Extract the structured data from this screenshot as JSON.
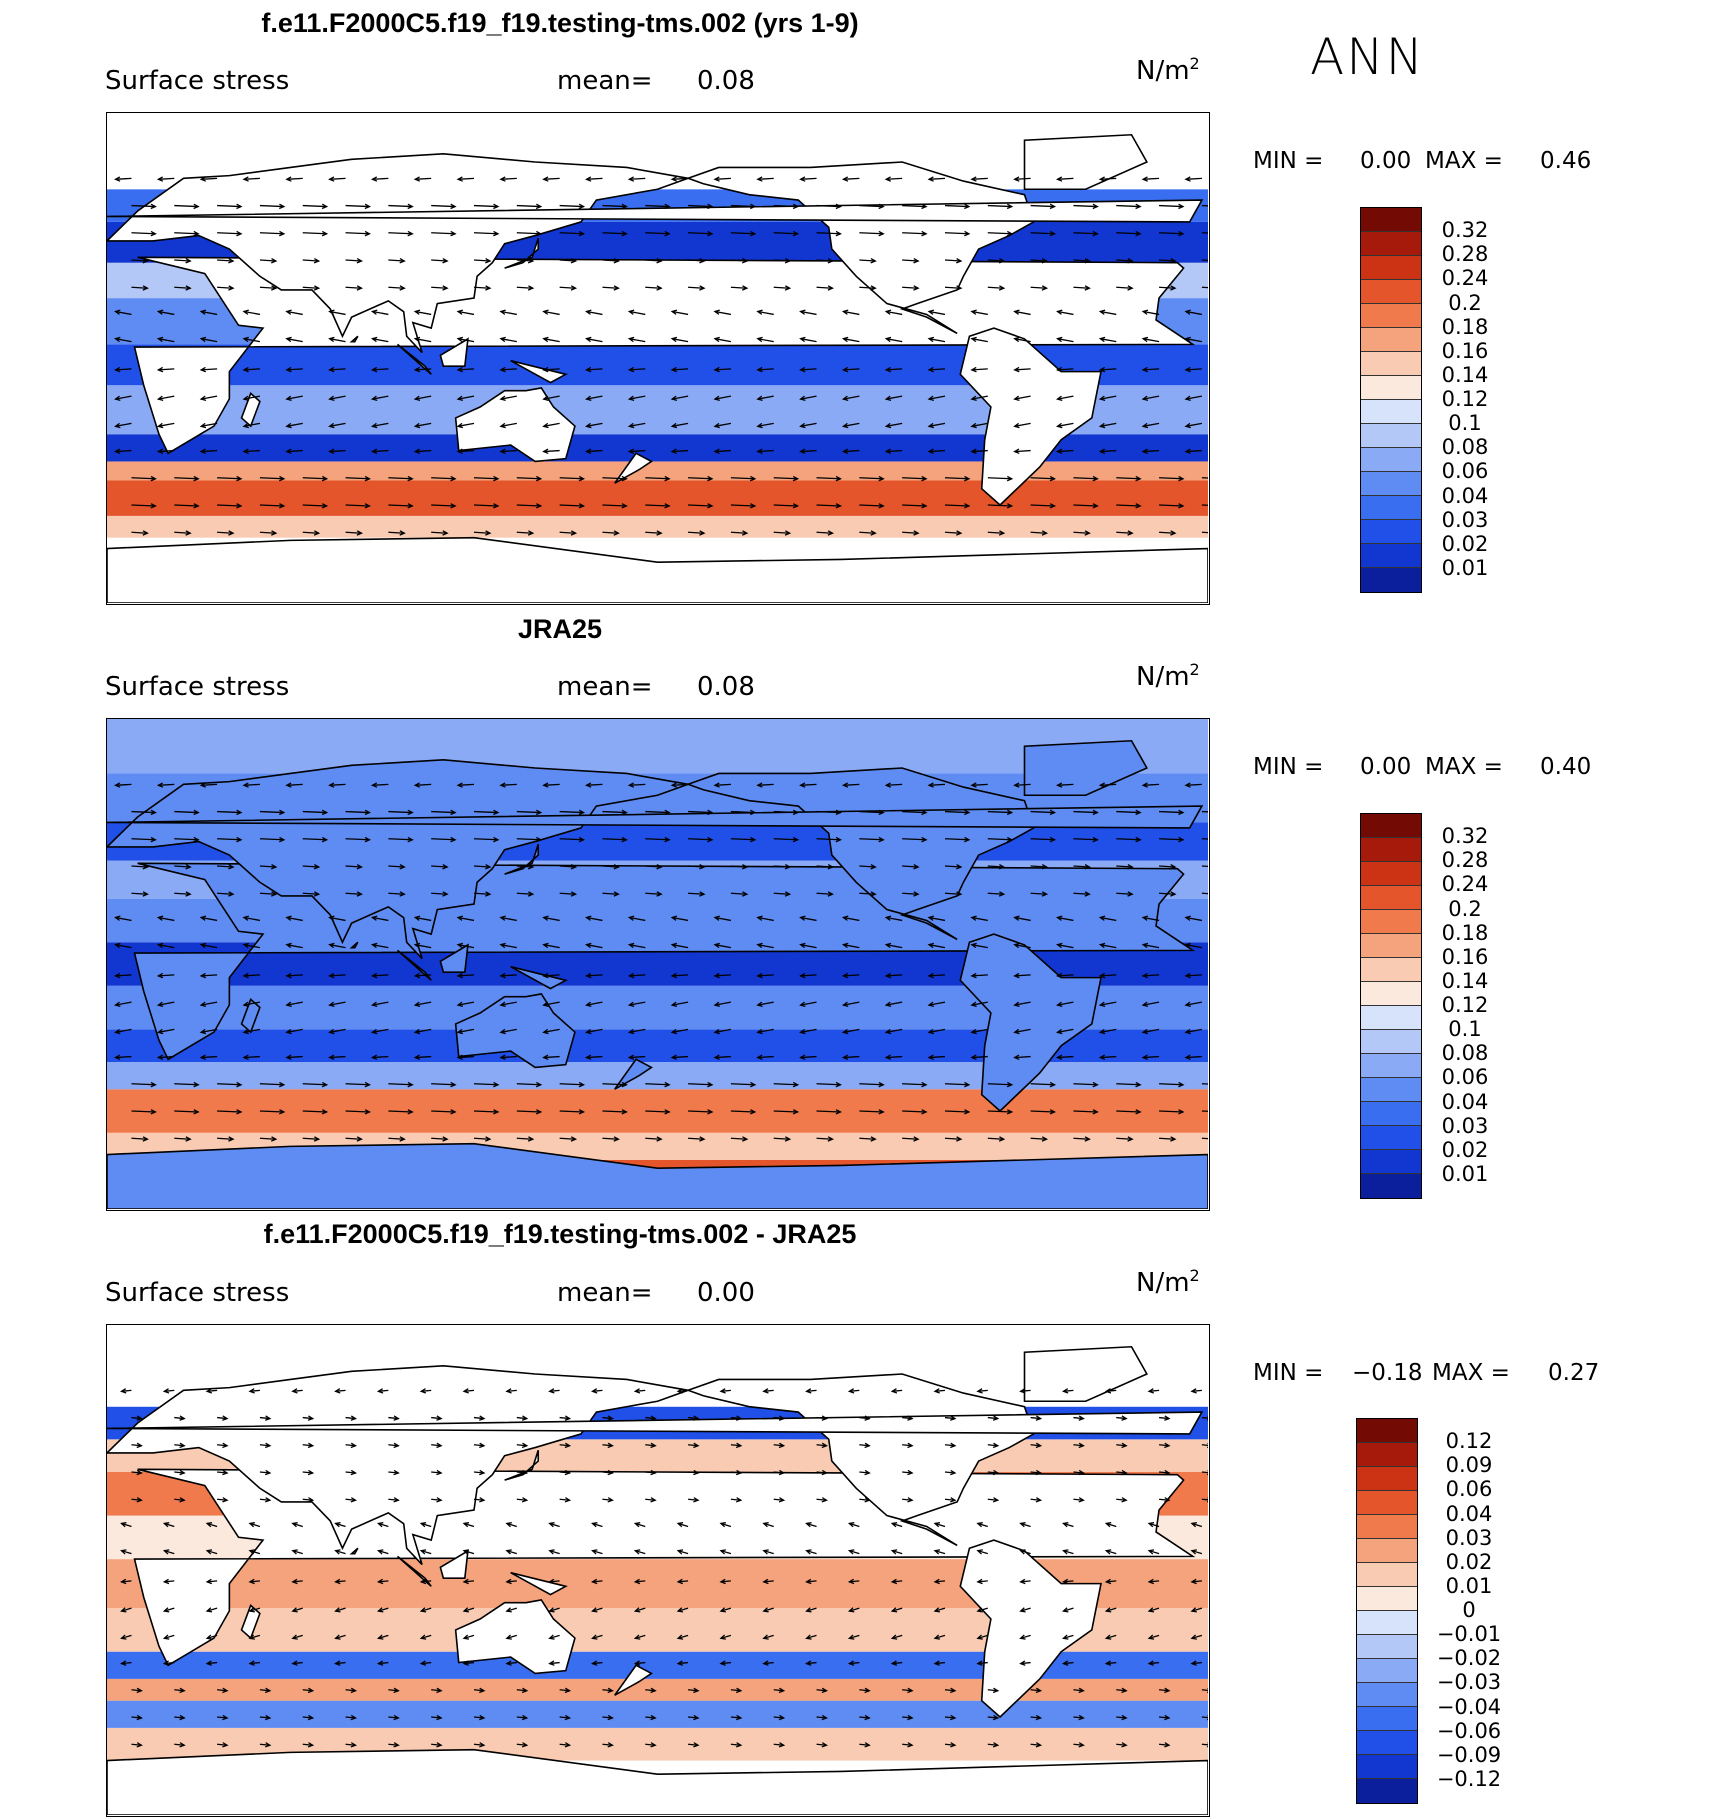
{
  "season": "ANN",
  "colors": {
    "seq": [
      "#08105e",
      "#0b1f9c",
      "#1236d0",
      "#2050e8",
      "#3a6ef0",
      "#5f8cf2",
      "#8aaaf5",
      "#b4c8f7",
      "#d6e3fa",
      "#fbe9dd",
      "#f8cbb2",
      "#f5a37c",
      "#f07a4c",
      "#e4552c",
      "#cc3315",
      "#a51a0a",
      "#740a04"
    ],
    "diff": [
      "#08105e",
      "#0b1f9c",
      "#1236d0",
      "#2050e8",
      "#3a6ef0",
      "#5f8cf2",
      "#8aaaf5",
      "#b4c8f7",
      "#d6e3fa",
      "#fbe9dd",
      "#f8cbb2",
      "#f5a37c",
      "#f07a4c",
      "#e4552c",
      "#cc3315",
      "#a51a0a",
      "#740a04"
    ]
  },
  "panels": [
    {
      "title": "f.e11.F2000C5.f19_f19.testing-tms.002 (yrs 1-9)",
      "variable": "Surface stress",
      "mean_label": "mean=",
      "mean_value": "0.08",
      "units": "N/m",
      "units_sup": "2",
      "min_label": "MIN =",
      "min_value": "0.00",
      "max_label": "MAX =",
      "max_value": "0.46",
      "levels": [
        "0.32",
        "0.28",
        "0.24",
        "0.2",
        "0.18",
        "0.16",
        "0.14",
        "0.12",
        "0.1",
        "0.08",
        "0.06",
        "0.04",
        "0.03",
        "0.02",
        "0.01"
      ],
      "palette": "seq"
    },
    {
      "title": "JRA25",
      "variable": "Surface stress",
      "mean_label": "mean=",
      "mean_value": "0.08",
      "units": "N/m",
      "units_sup": "2",
      "min_label": "MIN =",
      "min_value": "0.00",
      "max_label": "MAX =",
      "max_value": "0.40",
      "levels": [
        "0.32",
        "0.28",
        "0.24",
        "0.2",
        "0.18",
        "0.16",
        "0.14",
        "0.12",
        "0.1",
        "0.08",
        "0.06",
        "0.04",
        "0.03",
        "0.02",
        "0.01"
      ],
      "palette": "seq"
    },
    {
      "title": "f.e11.F2000C5.f19_f19.testing-tms.002 - JRA25",
      "variable": "Surface stress",
      "mean_label": "mean=",
      "mean_value": "0.00",
      "units": "N/m",
      "units_sup": "2",
      "min_label": "MIN =",
      "min_value": "−0.18",
      "max_label": "MAX =",
      "max_value": "0.27",
      "levels": [
        "0.12",
        "0.09",
        "0.06",
        "0.04",
        "0.03",
        "0.02",
        "0.01",
        "0",
        "−0.01",
        "−0.02",
        "−0.03",
        "−0.04",
        "−0.06",
        "−0.09",
        "−0.12"
      ],
      "palette": "diff"
    }
  ]
}
